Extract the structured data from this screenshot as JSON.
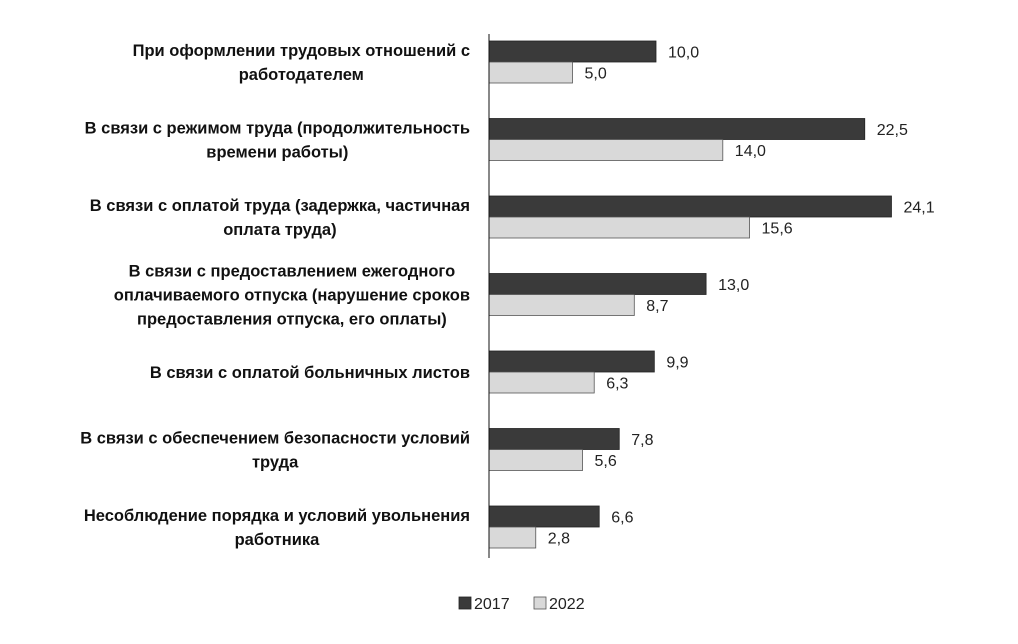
{
  "chart_data": {
    "type": "bar",
    "orientation": "horizontal",
    "categories": [
      [
        "При оформлении трудовых отношений с",
        "работодателем"
      ],
      [
        "В связи с режимом труда (продолжительность",
        "времени работы)"
      ],
      [
        "В связи с оплатой труда (задержка, частичная",
        "оплата труда)"
      ],
      [
        "В связи с предоставлением ежегодного",
        "оплачиваемого отпуска (нарушение сроков",
        "предоставления отпуска, его оплаты)"
      ],
      [
        "В связи с оплатой больничных листов"
      ],
      [
        "В связи с обеспечением безопасности условий",
        "труда"
      ],
      [
        "Несоблюдение порядка и условий увольнения",
        "работника"
      ]
    ],
    "series": [
      {
        "name": "2017",
        "color": "#3a3a3a",
        "values": [
          10.0,
          22.5,
          24.1,
          13.0,
          9.9,
          7.8,
          6.6
        ],
        "labels": [
          "10,0",
          "22,5",
          "24,1",
          "13,0",
          "9,9",
          "7,8",
          "6,6"
        ]
      },
      {
        "name": "2022",
        "color": "#d9d9d9",
        "values": [
          5.0,
          14.0,
          15.6,
          8.7,
          6.3,
          5.6,
          2.8
        ],
        "labels": [
          "5,0",
          "14,0",
          "15,6",
          "8,7",
          "6,3",
          "5,6",
          "2,8"
        ]
      }
    ],
    "xlim": [
      0,
      25
    ],
    "grid": false,
    "legend": "bottom-center"
  }
}
